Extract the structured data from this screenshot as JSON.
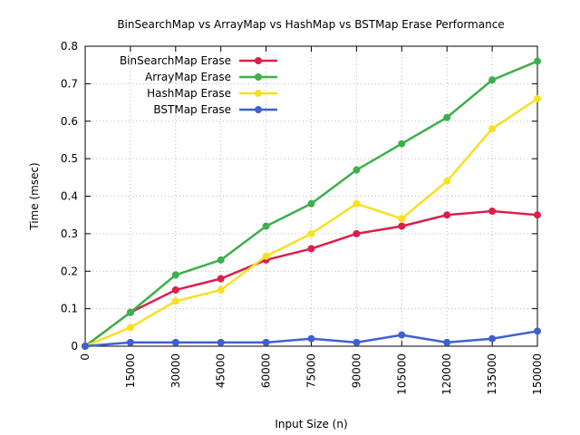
{
  "chart_data": {
    "type": "line",
    "title": "BinSearchMap vs ArrayMap vs HashMap vs BSTMap Erase Performance",
    "xlabel": "Input Size (n)",
    "ylabel": "Time (msec)",
    "x": [
      0,
      15000,
      30000,
      45000,
      60000,
      75000,
      90000,
      105000,
      120000,
      135000,
      150000
    ],
    "xlim": [
      0,
      150000
    ],
    "ylim": [
      0,
      0.8
    ],
    "yticks": [
      0,
      0.1,
      0.2,
      0.3,
      0.4,
      0.5,
      0.6,
      0.7,
      0.8
    ],
    "ytick_labels": [
      "0",
      "0.1",
      "0.2",
      "0.3",
      "0.4",
      "0.5",
      "0.6",
      "0.7",
      "0.8"
    ],
    "xtick_labels": [
      "0",
      "15000",
      "30000",
      "45000",
      "60000",
      "75000",
      "90000",
      "105000",
      "120000",
      "135000",
      "150000"
    ],
    "grid": true,
    "legend_position": "top-left",
    "series": [
      {
        "name": "BinSearchMap Erase",
        "color": "#dc1e4a",
        "values": [
          0,
          0.09,
          0.15,
          0.18,
          0.23,
          0.26,
          0.3,
          0.32,
          0.35,
          0.36,
          0.35
        ]
      },
      {
        "name": "ArrayMap Erase",
        "color": "#3cb04a",
        "values": [
          0,
          0.09,
          0.19,
          0.23,
          0.32,
          0.38,
          0.47,
          0.54,
          0.61,
          0.71,
          0.76
        ]
      },
      {
        "name": "HashMap Erase",
        "color": "#f8e020",
        "values": [
          0,
          0.05,
          0.12,
          0.15,
          0.24,
          0.3,
          0.38,
          0.34,
          0.44,
          0.58,
          0.66
        ]
      },
      {
        "name": "BSTMap Erase",
        "color": "#4060d0",
        "values": [
          0,
          0.01,
          0.01,
          0.01,
          0.01,
          0.02,
          0.01,
          0.03,
          0.01,
          0.02,
          0.04
        ]
      }
    ]
  }
}
